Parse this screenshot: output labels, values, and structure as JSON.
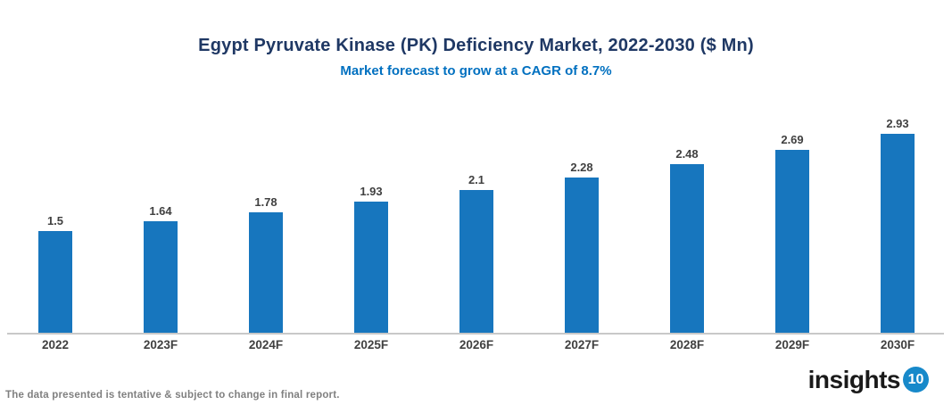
{
  "header": {
    "title": "Egypt Pyruvate Kinase (PK) Deficiency Market, 2022-2030 ($ Mn)",
    "subtitle": "Market forecast to grow at a CAGR of 8.7%"
  },
  "chart_data": {
    "type": "bar",
    "title": "Egypt Pyruvate Kinase (PK) Deficiency Market, 2022-2030 ($ Mn)",
    "subtitle": "Market forecast to grow at a CAGR of 8.7%",
    "categories": [
      "2022",
      "2023F",
      "2024F",
      "2025F",
      "2026F",
      "2027F",
      "2028F",
      "2029F",
      "2030F"
    ],
    "values": [
      1.5,
      1.64,
      1.78,
      1.93,
      2.1,
      2.28,
      2.48,
      2.69,
      2.93
    ],
    "value_labels": [
      "1.5",
      "1.64",
      "1.78",
      "1.93",
      "2.1",
      "2.28",
      "2.48",
      "2.69",
      "2.93"
    ],
    "xlabel": "",
    "ylabel": "",
    "ylim": [
      0,
      3.2
    ],
    "grid": false,
    "legend": "none",
    "value_labels_shown": true
  },
  "colors": {
    "title": "#1F3864",
    "subtitle": "#0070C0",
    "bar": "#1776BE",
    "value_label": "#404040",
    "axis_label": "#404040",
    "axis_line": "#C8C8C8",
    "footer_note": "#808080",
    "logo_badge": "#1789CA"
  },
  "footer": {
    "note": "The data presented is tentative & subject to change in final report.",
    "logo_text": "insights",
    "logo_badge": "10"
  }
}
